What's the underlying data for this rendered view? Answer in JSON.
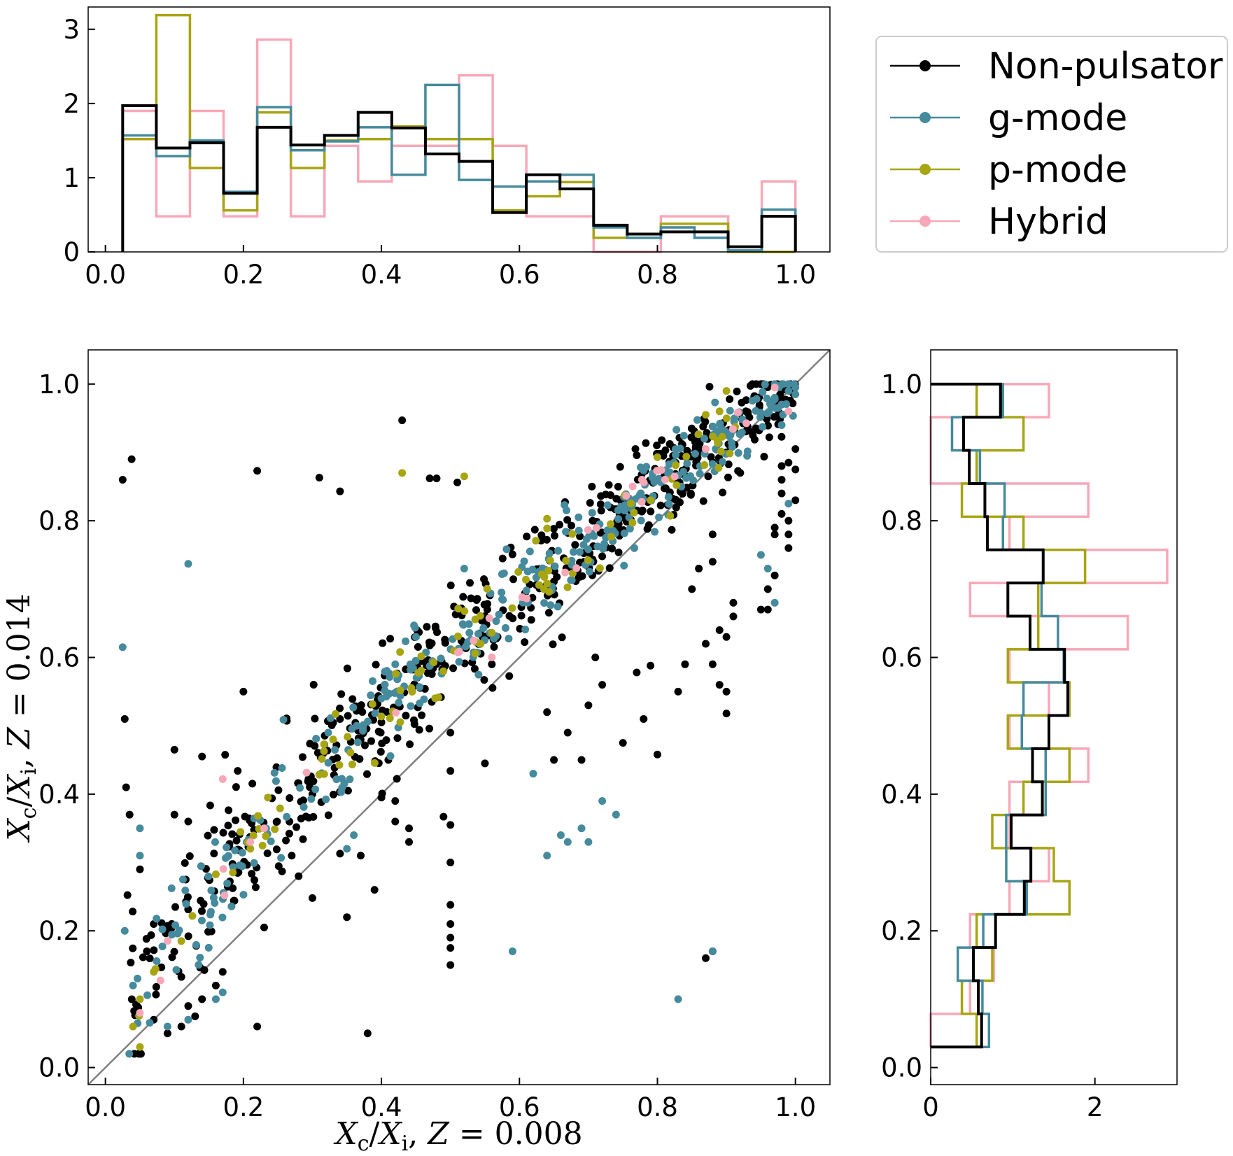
{
  "chart_data": [
    {
      "id": "top-histogram",
      "type": "histogram",
      "orientation": "vertical",
      "xlim": [
        -0.025,
        1.05
      ],
      "ylim": [
        0,
        3.3
      ],
      "xticks": [
        0.0,
        0.2,
        0.4,
        0.6,
        0.8,
        1.0
      ],
      "xtick_labels": [
        "0.0",
        "0.2",
        "0.4",
        "0.6",
        "0.8",
        "1.0"
      ],
      "yticks": [
        0,
        1,
        2,
        3
      ],
      "ytick_labels": [
        "0",
        "1",
        "2",
        "3"
      ],
      "bin_edges": [
        0.025,
        0.07375,
        0.1225,
        0.17125,
        0.22,
        0.26875,
        0.3175,
        0.36625,
        0.415,
        0.46375,
        0.5125,
        0.56125,
        0.61,
        0.65875,
        0.7075,
        0.75625,
        0.805,
        0.85375,
        0.9025,
        0.95125,
        1.0
      ],
      "series": [
        {
          "name": "Non-pulsator",
          "color": "#000000",
          "values": [
            1.97,
            1.4,
            1.47,
            0.79,
            1.68,
            1.44,
            1.57,
            1.88,
            1.67,
            1.32,
            1.22,
            0.53,
            1.04,
            0.85,
            0.36,
            0.24,
            0.27,
            0.27,
            0.07,
            0.48
          ]
        },
        {
          "name": "g-mode",
          "color": "#458a9d",
          "values": [
            1.57,
            1.29,
            1.5,
            0.81,
            1.95,
            1.37,
            1.49,
            1.68,
            1.04,
            2.25,
            0.97,
            0.88,
            0.95,
            1.04,
            0.33,
            0.19,
            0.33,
            0.19,
            0.02,
            0.57
          ]
        },
        {
          "name": "p-mode",
          "color": "#a7a512",
          "values": [
            1.52,
            3.19,
            1.13,
            0.56,
            1.88,
            1.13,
            1.5,
            1.52,
            1.69,
            1.52,
            1.52,
            0.56,
            0.75,
            0.94,
            0.19,
            0.19,
            0.38,
            0.38,
            0.0,
            0.0
          ]
        },
        {
          "name": "Hybrid",
          "color": "#f7a8b8",
          "values": [
            1.9,
            0.48,
            1.9,
            0.48,
            2.86,
            0.48,
            1.43,
            0.95,
            1.43,
            1.43,
            2.38,
            1.43,
            0.48,
            0.48,
            0.0,
            0.0,
            0.48,
            0.48,
            0.0,
            0.95
          ]
        }
      ]
    },
    {
      "id": "scatter",
      "type": "scatter",
      "xlim": [
        -0.025,
        1.05
      ],
      "ylim": [
        -0.025,
        1.05
      ],
      "xticks": [
        0.0,
        0.2,
        0.4,
        0.6,
        0.8,
        1.0
      ],
      "xtick_labels": [
        "0.0",
        "0.2",
        "0.4",
        "0.6",
        "0.8",
        "1.0"
      ],
      "yticks": [
        0.0,
        0.2,
        0.4,
        0.6,
        0.8,
        1.0
      ],
      "ytick_labels": [
        "0.0",
        "0.2",
        "0.4",
        "0.6",
        "0.8",
        "1.0"
      ],
      "xlabel": "Xc/Xi, Z = 0.008",
      "ylabel": "Xc/Xi, Z = 0.014",
      "identity_line": {
        "from": [
          -0.025,
          -0.025
        ],
        "to": [
          1.05,
          1.05
        ],
        "color": "#808080"
      },
      "series": [
        {
          "name": "Non-pulsator",
          "color": "#000000",
          "trend_samples": {
            "count": 560,
            "x_range": [
              0.03,
              1.0
            ],
            "relation": "y = x^0.72, scatter 0.045"
          },
          "points": [
            [
              0.025,
              0.86
            ],
            [
              0.038,
              0.89
            ],
            [
              0.028,
              0.51
            ],
            [
              0.03,
              0.41
            ],
            [
              0.035,
              0.37
            ],
            [
              0.1,
              0.465
            ],
            [
              0.14,
              0.455
            ],
            [
              0.1,
              0.37
            ],
            [
              0.12,
              0.36
            ],
            [
              0.05,
              0.29
            ],
            [
              0.07,
              0.21
            ],
            [
              0.06,
              0.17
            ],
            [
              0.07,
              0.07
            ],
            [
              0.09,
              0.05
            ],
            [
              0.11,
              0.06
            ],
            [
              0.12,
              0.09
            ],
            [
              0.13,
              0.075
            ],
            [
              0.14,
              0.1
            ],
            [
              0.16,
              0.12
            ],
            [
              0.17,
              0.14
            ],
            [
              0.2,
              0.55
            ],
            [
              0.22,
              0.06
            ],
            [
              0.23,
              0.205
            ],
            [
              0.22,
              0.873
            ],
            [
              0.31,
              0.863
            ],
            [
              0.34,
              0.843
            ],
            [
              0.4,
              0.505
            ],
            [
              0.4,
              0.395
            ],
            [
              0.42,
              0.36
            ],
            [
              0.44,
              0.35
            ],
            [
              0.44,
              0.33
            ],
            [
              0.43,
              0.947
            ],
            [
              0.42,
              0.39
            ],
            [
              0.39,
              0.26
            ],
            [
              0.35,
              0.22
            ],
            [
              0.41,
              0.45
            ],
            [
              0.3,
              0.4
            ],
            [
              0.3,
              0.248
            ],
            [
              0.28,
              0.28
            ],
            [
              0.34,
              0.313
            ],
            [
              0.37,
              0.31
            ],
            [
              0.47,
              0.862
            ],
            [
              0.48,
              0.862
            ],
            [
              0.51,
              0.856
            ],
            [
              0.5,
              0.49
            ],
            [
              0.5,
              0.434
            ],
            [
              0.49,
              0.367
            ],
            [
              0.5,
              0.355
            ],
            [
              0.5,
              0.3
            ],
            [
              0.5,
              0.238
            ],
            [
              0.5,
              0.21
            ],
            [
              0.5,
              0.19
            ],
            [
              0.5,
              0.175
            ],
            [
              0.5,
              0.15
            ],
            [
              0.55,
              0.445
            ],
            [
              0.56,
              0.59
            ],
            [
              0.65,
              0.45
            ],
            [
              0.69,
              0.45
            ],
            [
              0.7,
              0.53
            ],
            [
              0.72,
              0.56
            ],
            [
              0.71,
              0.6
            ],
            [
              0.64,
              0.52
            ],
            [
              0.67,
              0.49
            ],
            [
              0.75,
              0.475
            ],
            [
              0.77,
              0.578
            ],
            [
              0.78,
              0.51
            ],
            [
              0.79,
              0.588
            ],
            [
              0.8,
              0.458
            ],
            [
              0.83,
              0.55
            ],
            [
              0.84,
              0.59
            ],
            [
              0.85,
              0.7
            ],
            [
              0.87,
              0.62
            ],
            [
              0.86,
              0.73
            ],
            [
              0.88,
              0.59
            ],
            [
              0.88,
              0.78
            ],
            [
              0.88,
              0.74
            ],
            [
              0.89,
              0.56
            ],
            [
              0.89,
              0.64
            ],
            [
              0.9,
              0.63
            ],
            [
              0.9,
              0.55
            ],
            [
              0.9,
              0.518
            ],
            [
              0.91,
              0.66
            ],
            [
              0.91,
              0.68
            ],
            [
              0.88,
              0.17
            ],
            [
              0.87,
              0.16
            ],
            [
              0.9,
              0.9
            ],
            [
              0.92,
              0.87
            ],
            [
              0.94,
              0.98
            ],
            [
              0.95,
              0.67
            ],
            [
              0.96,
              0.67
            ],
            [
              0.96,
              0.7
            ],
            [
              0.97,
              0.72
            ],
            [
              0.97,
              0.78
            ],
            [
              0.97,
              0.79
            ],
            [
              0.98,
              0.81
            ],
            [
              0.98,
              0.84
            ],
            [
              0.98,
              0.86
            ],
            [
              0.99,
              0.78
            ],
            [
              0.99,
              0.76
            ],
            [
              0.99,
              0.8
            ],
            [
              1.0,
              0.83
            ],
            [
              1.0,
              0.875
            ],
            [
              1.0,
              0.905
            ],
            [
              0.99,
              0.885
            ],
            [
              0.98,
              0.88
            ],
            [
              0.38,
              0.05
            ],
            [
              0.34,
              0.51
            ],
            [
              0.27,
              0.31
            ]
          ]
        },
        {
          "name": "g-mode",
          "color": "#458a9d",
          "trend_samples": {
            "count": 330,
            "x_range": [
              0.03,
              1.0
            ],
            "relation": "y = x^0.72, scatter 0.035"
          },
          "points": [
            [
              0.025,
              0.615
            ],
            [
              0.12,
              0.737
            ],
            [
              0.028,
              0.2
            ],
            [
              0.05,
              0.35
            ],
            [
              0.05,
              0.31
            ],
            [
              0.04,
              0.12
            ],
            [
              0.09,
              0.06
            ],
            [
              0.12,
              0.07
            ],
            [
              0.17,
              0.11
            ],
            [
              0.16,
              0.1
            ],
            [
              0.35,
              0.32
            ],
            [
              0.36,
              0.34
            ],
            [
              0.69,
              0.35
            ],
            [
              0.66,
              0.34
            ],
            [
              0.64,
              0.31
            ],
            [
              0.59,
              0.17
            ],
            [
              0.67,
              0.33
            ],
            [
              0.7,
              0.33
            ],
            [
              0.74,
              0.37
            ],
            [
              0.72,
              0.39
            ],
            [
              0.62,
              0.43
            ],
            [
              0.83,
              0.1
            ],
            [
              0.88,
              0.17
            ],
            [
              0.88,
              0.883
            ],
            [
              0.93,
              0.895
            ],
            [
              0.95,
              0.75
            ],
            [
              0.96,
              0.73
            ],
            [
              0.97,
              0.68
            ],
            [
              0.975,
              0.965
            ],
            [
              0.98,
              0.94
            ],
            [
              0.99,
              0.825
            ],
            [
              0.97,
              0.98
            ],
            [
              0.98,
              0.97
            ],
            [
              0.99,
              0.99
            ],
            [
              1.0,
              0.995
            ],
            [
              1.0,
              0.985
            ],
            [
              0.42,
              0.59
            ],
            [
              0.45,
              0.63
            ],
            [
              0.4,
              0.54
            ],
            [
              0.52,
              0.73
            ]
          ]
        },
        {
          "name": "p-mode",
          "color": "#a7a512",
          "trend_samples": {
            "count": 95,
            "x_range": [
              0.04,
              0.92
            ],
            "relation": "y = x^0.72, scatter 0.03"
          },
          "points": [
            [
              0.05,
              0.03
            ],
            [
              0.04,
              0.06
            ],
            [
              0.05,
              0.1
            ],
            [
              0.07,
              0.14
            ],
            [
              0.11,
              0.185
            ],
            [
              0.43,
              0.87
            ],
            [
              0.52,
              0.865
            ],
            [
              0.8,
              0.893
            ],
            [
              0.79,
              0.83
            ],
            [
              0.87,
              0.955
            ],
            [
              0.89,
              0.96
            ],
            [
              0.9,
              0.99
            ],
            [
              0.64,
              0.803
            ],
            [
              0.21,
              0.32
            ],
            [
              0.33,
              0.48
            ]
          ]
        },
        {
          "name": "Hybrid",
          "color": "#f7a8b8",
          "trend_samples": {
            "count": 28,
            "x_range": [
              0.05,
              0.97
            ],
            "relation": "y = x^0.72, scatter 0.025"
          },
          "points": [
            [
              0.17,
              0.422
            ],
            [
              0.56,
              0.6
            ],
            [
              0.87,
              0.905
            ],
            [
              0.99,
              0.96
            ],
            [
              0.97,
              0.995
            ],
            [
              0.21,
              0.33
            ],
            [
              0.23,
              0.35
            ],
            [
              0.05,
              0.08
            ]
          ]
        }
      ]
    },
    {
      "id": "right-histogram",
      "type": "histogram",
      "orientation": "horizontal",
      "xlim": [
        0,
        3.0
      ],
      "ylim": [
        -0.025,
        1.05
      ],
      "xticks": [
        0,
        2
      ],
      "xtick_labels": [
        "0",
        "2"
      ],
      "yticks": [
        0.0,
        0.2,
        0.4,
        0.6,
        0.8,
        1.0
      ],
      "ytick_labels": [
        "0.0",
        "0.2",
        "0.4",
        "0.6",
        "0.8",
        "1.0"
      ],
      "bin_edges": [
        0.03,
        0.0785,
        0.127,
        0.1755,
        0.224,
        0.2725,
        0.321,
        0.3695,
        0.418,
        0.4665,
        0.515,
        0.5635,
        0.612,
        0.6605,
        0.709,
        0.7575,
        0.806,
        0.8545,
        0.903,
        0.9515,
        1.0
      ],
      "series": [
        {
          "name": "Non-pulsator",
          "color": "#000000",
          "values": [
            0.62,
            0.58,
            0.52,
            0.79,
            1.14,
            1.22,
            0.98,
            1.36,
            1.24,
            1.44,
            1.67,
            1.63,
            1.21,
            0.94,
            1.37,
            0.69,
            0.66,
            0.47,
            0.4,
            0.85
          ]
        },
        {
          "name": "g-mode",
          "color": "#458a9d",
          "values": [
            0.71,
            0.63,
            0.33,
            0.64,
            1.17,
            0.92,
            0.92,
            1.4,
            1.4,
            1.11,
            1.13,
            1.62,
            1.55,
            1.35,
            1.37,
            0.88,
            0.9,
            0.6,
            0.26,
            0.88
          ]
        },
        {
          "name": "p-mode",
          "color": "#a7a512",
          "values": [
            0.56,
            0.38,
            0.75,
            0.56,
            1.69,
            1.5,
            0.75,
            1.13,
            1.69,
            0.94,
            1.69,
            0.94,
            1.31,
            1.31,
            1.88,
            1.13,
            0.38,
            0.56,
            1.13,
            0.56
          ]
        },
        {
          "name": "Hybrid",
          "color": "#f7a8b8",
          "values": [
            0.0,
            0.48,
            0.77,
            0.48,
            0.96,
            1.44,
            0.96,
            0.96,
            1.92,
            0.96,
            1.44,
            0.96,
            2.4,
            0.48,
            2.88,
            0.96,
            1.92,
            0.0,
            0.0,
            1.44
          ]
        }
      ]
    }
  ],
  "legend": {
    "placement": "top-right",
    "items": [
      {
        "label": "Non-pulsator",
        "color": "#000000"
      },
      {
        "label": "g-mode",
        "color": "#458a9d"
      },
      {
        "label": "p-mode",
        "color": "#a7a512"
      },
      {
        "label": "Hybrid",
        "color": "#f7a8b8"
      }
    ]
  }
}
